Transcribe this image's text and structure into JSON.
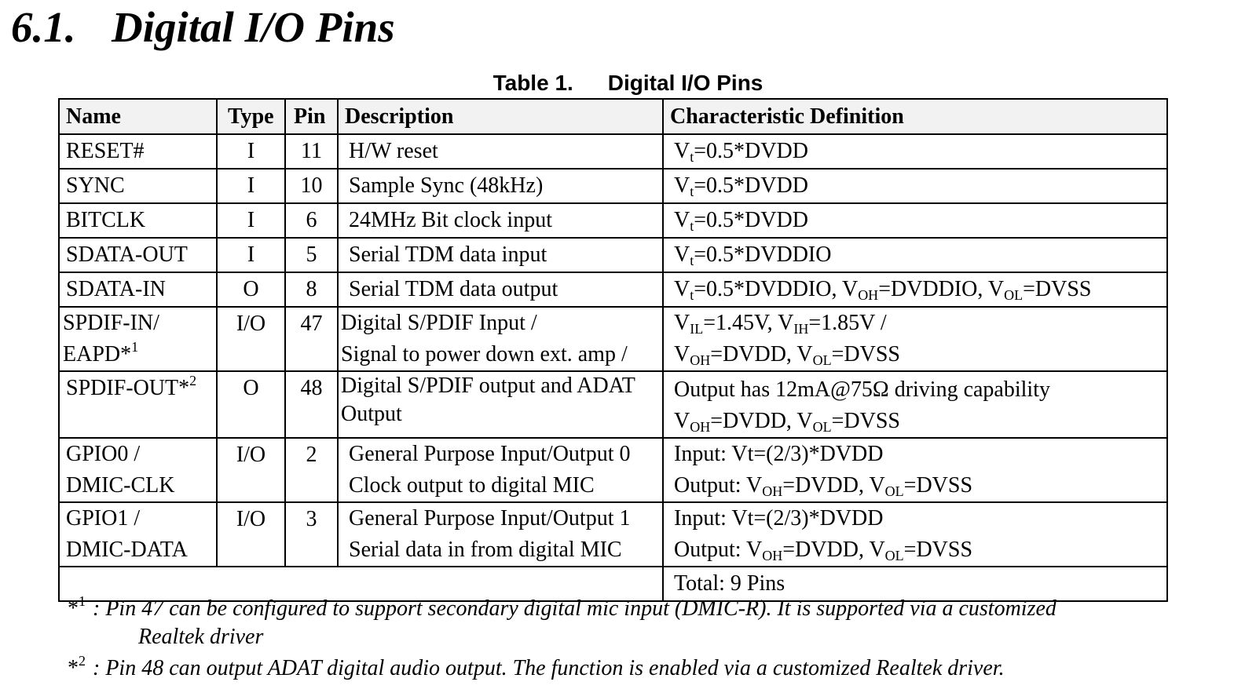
{
  "section": {
    "number": "6.1.",
    "title": "Digital I/O Pins"
  },
  "table": {
    "caption_label": "Table 1.",
    "caption_title": "Digital I/O Pins",
    "headers": {
      "name": "Name",
      "type": "Type",
      "pin": "Pin",
      "description": "Description",
      "characteristic": "Characteristic Definition"
    },
    "rows": [
      {
        "name": "RESET#",
        "type": "I",
        "pin": "11",
        "desc": "H/W reset",
        "char": "Vt=0.5*DVDD"
      },
      {
        "name": "SYNC",
        "type": "I",
        "pin": "10",
        "desc": "Sample Sync (48kHz)",
        "char": "Vt=0.5*DVDD"
      },
      {
        "name": "BITCLK",
        "type": "I",
        "pin": "6",
        "desc": "24MHz Bit clock input",
        "char": "Vt=0.5*DVDD"
      },
      {
        "name": "SDATA-OUT",
        "type": "I",
        "pin": "5",
        "desc": "Serial TDM data input",
        "char": "Vt=0.5*DVDDIO"
      },
      {
        "name": "SDATA-IN",
        "type": "O",
        "pin": "8",
        "desc": "Serial TDM data output",
        "char": "Vt=0.5*DVDDIO, VOH=DVDDIO, VOL=DVSS"
      },
      {
        "name1": "SPDIF-IN/",
        "name2": "EAPD*1",
        "type": "I/O",
        "pin": "47",
        "desc1": "Digital S/PDIF Input /",
        "desc2": "Signal to power down ext. amp /",
        "char1": "VIL=1.45V, VIH=1.85V /",
        "char2": "VOH=DVDD, VOL=DVSS"
      },
      {
        "name": "SPDIF-OUT*2",
        "type": "O",
        "pin": "48",
        "desc1": "Digital S/PDIF output and ADAT",
        "desc2": "Output",
        "char1": "Output has 12mA@75Ω driving capability",
        "char2": "VOH=DVDD, VOL=DVSS"
      },
      {
        "name1": "GPIO0 /",
        "name2": "DMIC-CLK",
        "type": "I/O",
        "pin": "2",
        "desc1": "General Purpose Input/Output 0",
        "desc2": "Clock output to digital MIC",
        "char1": "Input: Vt=(2/3)*DVDD",
        "char2": "Output: VOH=DVDD, VOL=DVSS"
      },
      {
        "name1": "GPIO1 /",
        "name2": "DMIC-DATA",
        "type": "I/O",
        "pin": "3",
        "desc1": "General Purpose Input/Output 1",
        "desc2": "Serial data in from digital MIC",
        "char1": "Input: Vt=(2/3)*DVDD",
        "char2": "Output: VOH=DVDD, VOL=DVSS"
      }
    ],
    "total": "Total: 9 Pins"
  },
  "footnotes": [
    {
      "mark": "*1",
      "text": ": Pin 47 can be configured to support secondary digital mic input (DMIC-R). It is supported via a customized",
      "continuation": "Realtek driver"
    },
    {
      "mark": "*2",
      "text": ": Pin 48 can output ADAT digital audio output. The function is enabled via a customized Realtek driver."
    }
  ]
}
